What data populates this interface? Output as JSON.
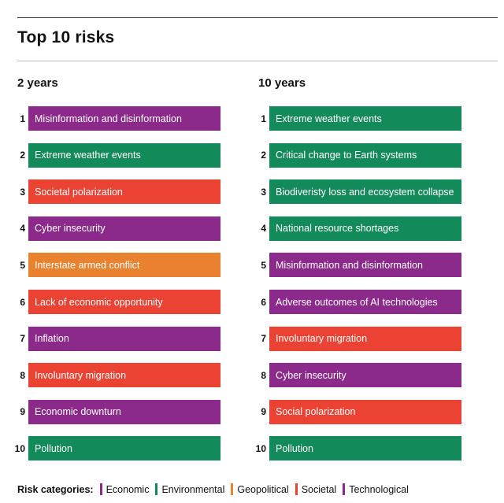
{
  "chart_data": {
    "type": "table",
    "title": "Top 10 risks",
    "colors": {
      "Economic": "#8b2a8a",
      "Environmental": "#138a5a",
      "Geopolitical": "#e8822e",
      "Societal": "#ea4333",
      "Technological": "#8b2a8a"
    },
    "columns": [
      {
        "heading": "2 years",
        "items": [
          {
            "rank": "1",
            "label": "Misinformation and disinformation",
            "category": "Technological"
          },
          {
            "rank": "2",
            "label": "Extreme weather events",
            "category": "Environmental"
          },
          {
            "rank": "3",
            "label": "Societal polarization",
            "category": "Societal"
          },
          {
            "rank": "4",
            "label": "Cyber insecurity",
            "category": "Technological"
          },
          {
            "rank": "5",
            "label": "Interstate armed conflict",
            "category": "Geopolitical"
          },
          {
            "rank": "6",
            "label": "Lack of economic opportunity",
            "category": "Societal"
          },
          {
            "rank": "7",
            "label": "Inflation",
            "category": "Economic"
          },
          {
            "rank": "8",
            "label": "Involuntary migration",
            "category": "Societal"
          },
          {
            "rank": "9",
            "label": "Economic downturn",
            "category": "Economic"
          },
          {
            "rank": "10",
            "label": "Pollution",
            "category": "Environmental"
          }
        ]
      },
      {
        "heading": "10 years",
        "items": [
          {
            "rank": "1",
            "label": "Extreme weather events",
            "category": "Environmental"
          },
          {
            "rank": "2",
            "label": "Critical change to Earth systems",
            "category": "Environmental"
          },
          {
            "rank": "3",
            "label": "Biodiveristy loss and ecosystem collapse",
            "category": "Environmental"
          },
          {
            "rank": "4",
            "label": "National resource shortages",
            "category": "Environmental"
          },
          {
            "rank": "5",
            "label": "Misinformation and disinformation",
            "category": "Technological"
          },
          {
            "rank": "6",
            "label": "Adverse outcomes of AI technologies",
            "category": "Technological"
          },
          {
            "rank": "7",
            "label": "Involuntary migration",
            "category": "Societal"
          },
          {
            "rank": "8",
            "label": "Cyber insecurity",
            "category": "Technological"
          },
          {
            "rank": "9",
            "label": "Social polarization",
            "category": "Societal"
          },
          {
            "rank": "10",
            "label": "Pollution",
            "category": "Environmental"
          }
        ]
      }
    ],
    "legend": {
      "title": "Risk categories:",
      "items": [
        "Economic",
        "Environmental",
        "Geopolitical",
        "Societal",
        "Technological"
      ]
    }
  }
}
